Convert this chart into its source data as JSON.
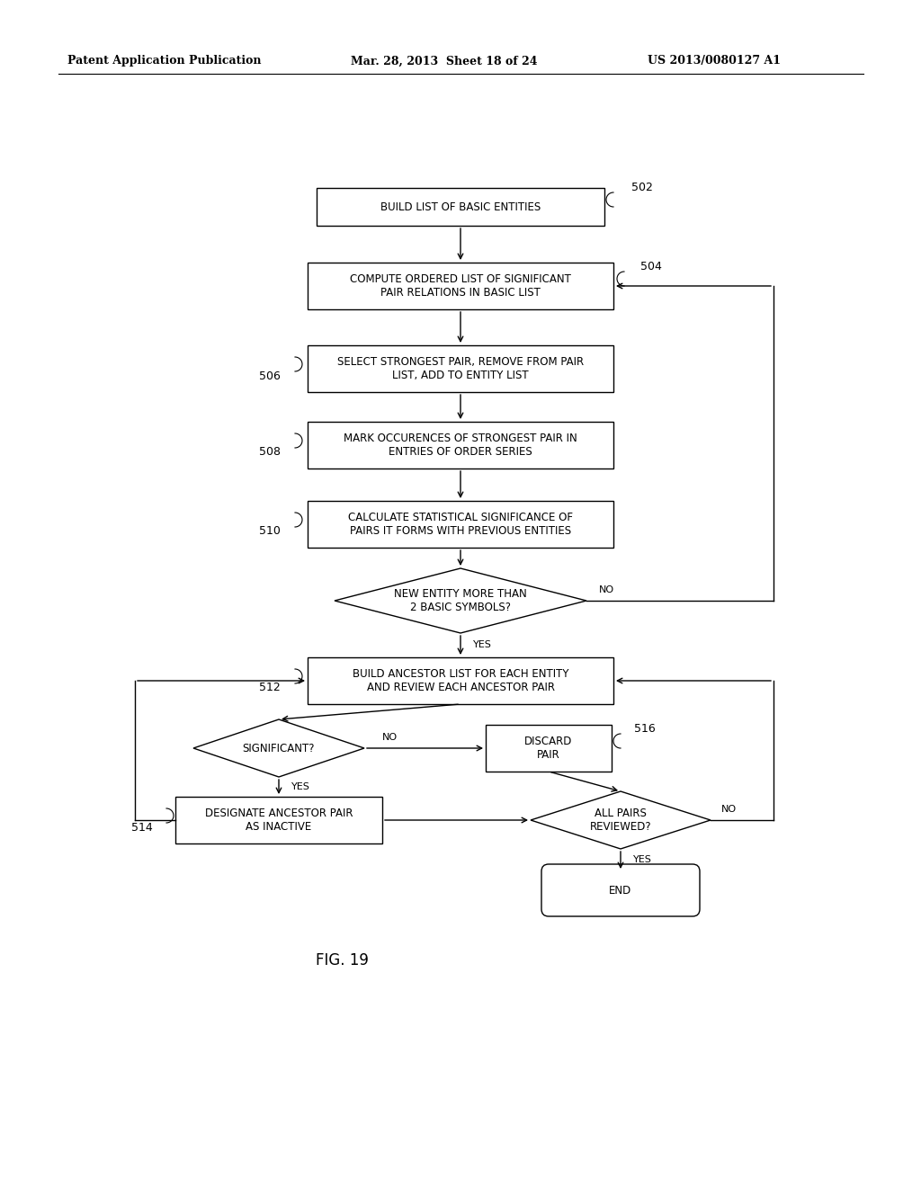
{
  "bg_color": "#ffffff",
  "header_left": "Patent Application Publication",
  "header_mid": "Mar. 28, 2013  Sheet 18 of 24",
  "header_right": "US 2013/0080127 A1",
  "fig_label": "FIG. 19",
  "line_color": "#000000",
  "text_color": "#000000"
}
